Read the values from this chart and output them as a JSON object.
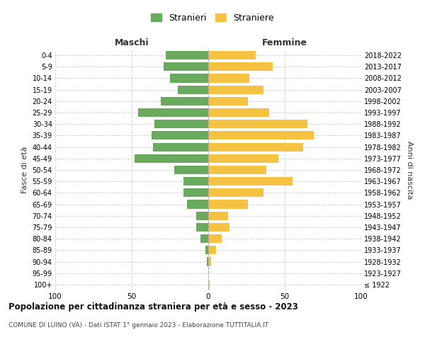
{
  "age_groups": [
    "100+",
    "95-99",
    "90-94",
    "85-89",
    "80-84",
    "75-79",
    "70-74",
    "65-69",
    "60-64",
    "55-59",
    "50-54",
    "45-49",
    "40-44",
    "35-39",
    "30-34",
    "25-29",
    "20-24",
    "15-19",
    "10-14",
    "5-9",
    "0-4"
  ],
  "birth_years": [
    "≤ 1922",
    "1923-1927",
    "1928-1932",
    "1933-1937",
    "1938-1942",
    "1943-1947",
    "1948-1952",
    "1953-1957",
    "1958-1962",
    "1963-1967",
    "1968-1972",
    "1973-1977",
    "1978-1982",
    "1983-1987",
    "1988-1992",
    "1993-1997",
    "1998-2002",
    "2003-2007",
    "2008-2012",
    "2013-2017",
    "2018-2022"
  ],
  "maschi": [
    0,
    0,
    1,
    2,
    5,
    8,
    8,
    14,
    16,
    16,
    22,
    48,
    36,
    37,
    35,
    46,
    31,
    20,
    25,
    29,
    28
  ],
  "femmine": [
    1,
    0,
    2,
    5,
    9,
    14,
    13,
    26,
    36,
    55,
    38,
    46,
    62,
    69,
    65,
    40,
    26,
    36,
    27,
    42,
    31
  ],
  "maschi_color": "#6aaa5e",
  "femmine_color": "#f5c242",
  "background_color": "#ffffff",
  "grid_color": "#cccccc",
  "title": "Popolazione per cittadinanza straniera per età e sesso - 2023",
  "subtitle": "COMUNE DI LUINO (VA) - Dati ISTAT 1° gennaio 2023 - Elaborazione TUTTITALIA.IT",
  "ylabel_left": "Fasce di età",
  "ylabel_right": "Anni di nascita",
  "xlabel_left": "Maschi",
  "xlabel_right": "Femmine",
  "legend_stranieri": "Stranieri",
  "legend_straniere": "Straniere",
  "xlim": 100,
  "figsize": [
    6.0,
    5.0
  ],
  "dpi": 100
}
